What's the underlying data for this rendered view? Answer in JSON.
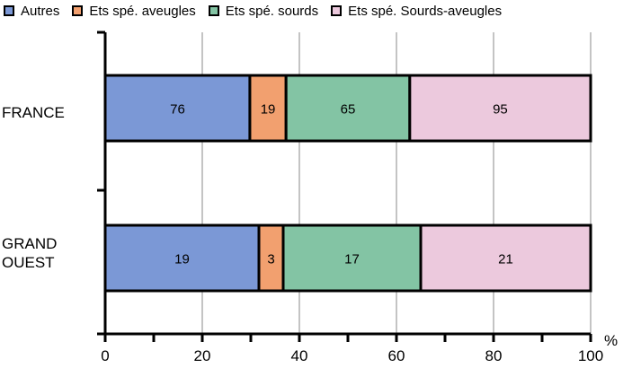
{
  "chart_data": {
    "type": "bar",
    "orientation": "horizontal",
    "stacked": "percent",
    "categories": [
      "FRANCE",
      "GRAND\nOUEST"
    ],
    "series": [
      {
        "name": "Autres",
        "values": [
          76,
          19
        ],
        "color": "#7b98d6"
      },
      {
        "name": "Ets spé. aveugles",
        "values": [
          19,
          3
        ],
        "color": "#f2a06f"
      },
      {
        "name": "Ets spé. sourds",
        "values": [
          65,
          17
        ],
        "color": "#83c4a4"
      },
      {
        "name": "Ets spé. Sourds-aveugles",
        "values": [
          95,
          21
        ],
        "color": "#ecc9dd"
      }
    ],
    "xlim": [
      0,
      100
    ],
    "xticks": [
      "0",
      "20",
      "40",
      "60",
      "80",
      "100"
    ],
    "xunit": "%",
    "grid": "vertical",
    "legend_position": "top"
  }
}
